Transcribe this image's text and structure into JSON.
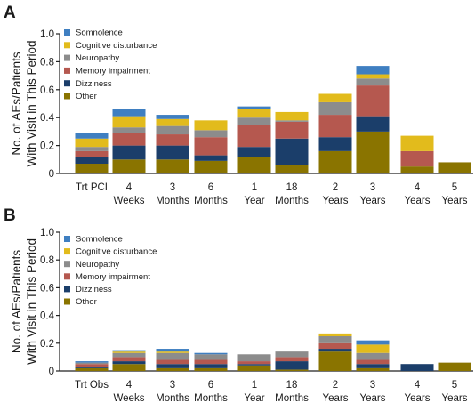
{
  "chart_data": [
    {
      "panel": "A",
      "type": "bar",
      "stacked": true,
      "ylabel": "No. of AEs/Patients\nWith Visit in This Period",
      "ylim": [
        0,
        1.0
      ],
      "yticks": [
        "0",
        "0.2",
        "0.4",
        "0.6",
        "0.8",
        "1.0"
      ],
      "categories": [
        "Trt PCI",
        "4\nWeeks",
        "3\nMonths",
        "6\nMonths",
        "1\nYear",
        "18\nMonths",
        "2\nYears",
        "3\nYears",
        "4\nYears",
        "5\nYears"
      ],
      "series": [
        {
          "name": "Other",
          "color": "#8a7400",
          "values": [
            0.07,
            0.1,
            0.1,
            0.09,
            0.12,
            0.06,
            0.16,
            0.3,
            0.05,
            0.08
          ]
        },
        {
          "name": "Dizziness",
          "color": "#1b3e6a",
          "values": [
            0.05,
            0.1,
            0.1,
            0.04,
            0.07,
            0.19,
            0.1,
            0.11,
            0.0,
            0.0
          ]
        },
        {
          "name": "Memory impairment",
          "color": "#b5584f",
          "values": [
            0.04,
            0.09,
            0.08,
            0.13,
            0.16,
            0.12,
            0.16,
            0.22,
            0.11,
            0.0
          ]
        },
        {
          "name": "Neuropathy",
          "color": "#8c8c8c",
          "values": [
            0.03,
            0.04,
            0.06,
            0.05,
            0.05,
            0.01,
            0.09,
            0.05,
            0.0,
            0.0
          ]
        },
        {
          "name": "Cognitive disturbance",
          "color": "#e2bb1c",
          "values": [
            0.06,
            0.08,
            0.05,
            0.07,
            0.06,
            0.06,
            0.06,
            0.03,
            0.11,
            0.0
          ]
        },
        {
          "name": "Somnolence",
          "color": "#3f7fc1",
          "values": [
            0.04,
            0.05,
            0.03,
            0.0,
            0.02,
            0.0,
            0.0,
            0.06,
            0.0,
            0.0
          ]
        }
      ]
    },
    {
      "panel": "B",
      "type": "bar",
      "stacked": true,
      "ylabel": "No. of AEs/Patients\nWith Visit in This Period",
      "ylim": [
        0,
        1.0
      ],
      "yticks": [
        "0",
        "0.2",
        "0.4",
        "0.6",
        "0.8",
        "1.0"
      ],
      "categories": [
        "Trt Obs",
        "4\nWeeks",
        "3\nMonths",
        "6\nMonths",
        "1\nYear",
        "18\nMonths",
        "2\nYears",
        "3\nYears",
        "4\nYears",
        "5\nYears"
      ],
      "series": [
        {
          "name": "Other",
          "color": "#8a7400",
          "values": [
            0.02,
            0.05,
            0.02,
            0.02,
            0.04,
            0.01,
            0.14,
            0.02,
            0.0,
            0.06
          ]
        },
        {
          "name": "Dizziness",
          "color": "#1b3e6a",
          "values": [
            0.01,
            0.02,
            0.03,
            0.03,
            0.01,
            0.06,
            0.02,
            0.03,
            0.05,
            0.0
          ]
        },
        {
          "name": "Memory impairment",
          "color": "#b5584f",
          "values": [
            0.02,
            0.03,
            0.03,
            0.03,
            0.02,
            0.03,
            0.04,
            0.03,
            0.0,
            0.0
          ]
        },
        {
          "name": "Neuropathy",
          "color": "#8c8c8c",
          "values": [
            0.01,
            0.03,
            0.05,
            0.04,
            0.05,
            0.04,
            0.05,
            0.05,
            0.0,
            0.0
          ]
        },
        {
          "name": "Cognitive disturbance",
          "color": "#e2bb1c",
          "values": [
            0.0,
            0.01,
            0.01,
            0.0,
            0.0,
            0.0,
            0.02,
            0.06,
            0.0,
            0.0
          ]
        },
        {
          "name": "Somnolence",
          "color": "#3f7fc1",
          "values": [
            0.01,
            0.01,
            0.02,
            0.01,
            0.0,
            0.0,
            0.0,
            0.03,
            0.0,
            0.0
          ]
        }
      ]
    }
  ]
}
